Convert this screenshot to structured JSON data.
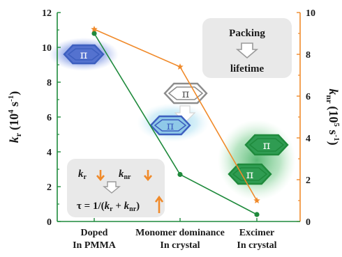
{
  "chart_data": {
    "type": "line",
    "categories": [
      [
        "Doped",
        "In PMMA"
      ],
      [
        "Monomer dominance",
        "In crystal"
      ],
      [
        "Excimer",
        "In crystal"
      ]
    ],
    "series": [
      {
        "name": "k_r",
        "axis": "left",
        "marker": "circle",
        "color": "#1f8a3c",
        "values": [
          10.8,
          2.7,
          0.4
        ]
      },
      {
        "name": "k_nr",
        "axis": "right",
        "marker": "star",
        "color": "#f08a2a",
        "values": [
          9.2,
          7.4,
          1.0
        ]
      }
    ],
    "left_axis": {
      "label_main": "k",
      "label_sub": "r",
      "label_unit": "(10",
      "label_exp": "4",
      "label_unit2": " s",
      "label_exp2": "-1",
      "label_close": ")",
      "ylim": [
        0,
        12
      ],
      "ticks": [
        "0",
        "2",
        "4",
        "6",
        "8",
        "10",
        "12"
      ],
      "color": "#1f8a3c"
    },
    "right_axis": {
      "label_main": "k",
      "label_sub": "nr",
      "label_unit": "(10",
      "label_exp": "5",
      "label_unit2": " s",
      "label_exp2": "-1",
      "label_close": ")",
      "ylim": [
        0,
        10
      ],
      "ticks": [
        "0",
        "2",
        "4",
        "6",
        "8",
        "10"
      ],
      "color": "#f08a2a"
    },
    "grid": false
  },
  "annotations": {
    "packing_box": {
      "line1": "Packing",
      "line2": "lifetime"
    },
    "rate_box": {
      "kr": "k",
      "kr_sub": "r",
      "knr": "k",
      "knr_sub": "nr",
      "tau": "τ = 1/(",
      "tau_k1": "k",
      "tau_s1": "r",
      "tau_plus": " + ",
      "tau_k2": "k",
      "tau_s2": "nr",
      "tau_close": ")"
    },
    "pi_symbol": "π"
  },
  "colors": {
    "green": "#1f8a3c",
    "orange": "#f08a2a",
    "blue": "#3d5fbf",
    "grey_box": "#e9e9e9"
  }
}
